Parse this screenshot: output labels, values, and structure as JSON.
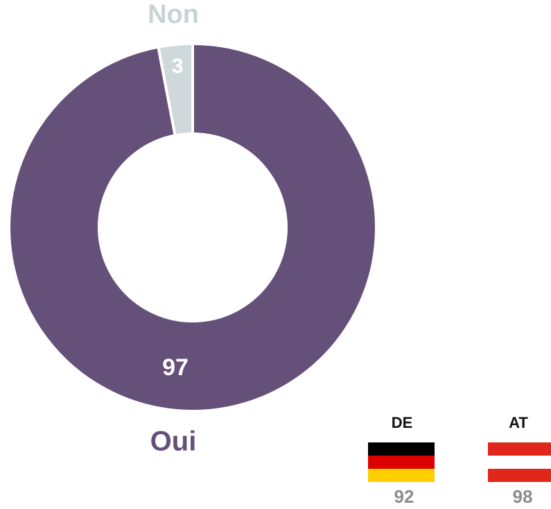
{
  "chart_data": {
    "type": "pie",
    "categories": [
      "Oui",
      "Non"
    ],
    "values": [
      97,
      3
    ],
    "colors": [
      "#65507a",
      "#cfd8da"
    ],
    "label_colors": [
      "#65507a",
      "#c9d3d4"
    ]
  },
  "comparison": [
    {
      "label": "DE",
      "value": 92
    },
    {
      "label": "AT",
      "value": 98
    }
  ]
}
